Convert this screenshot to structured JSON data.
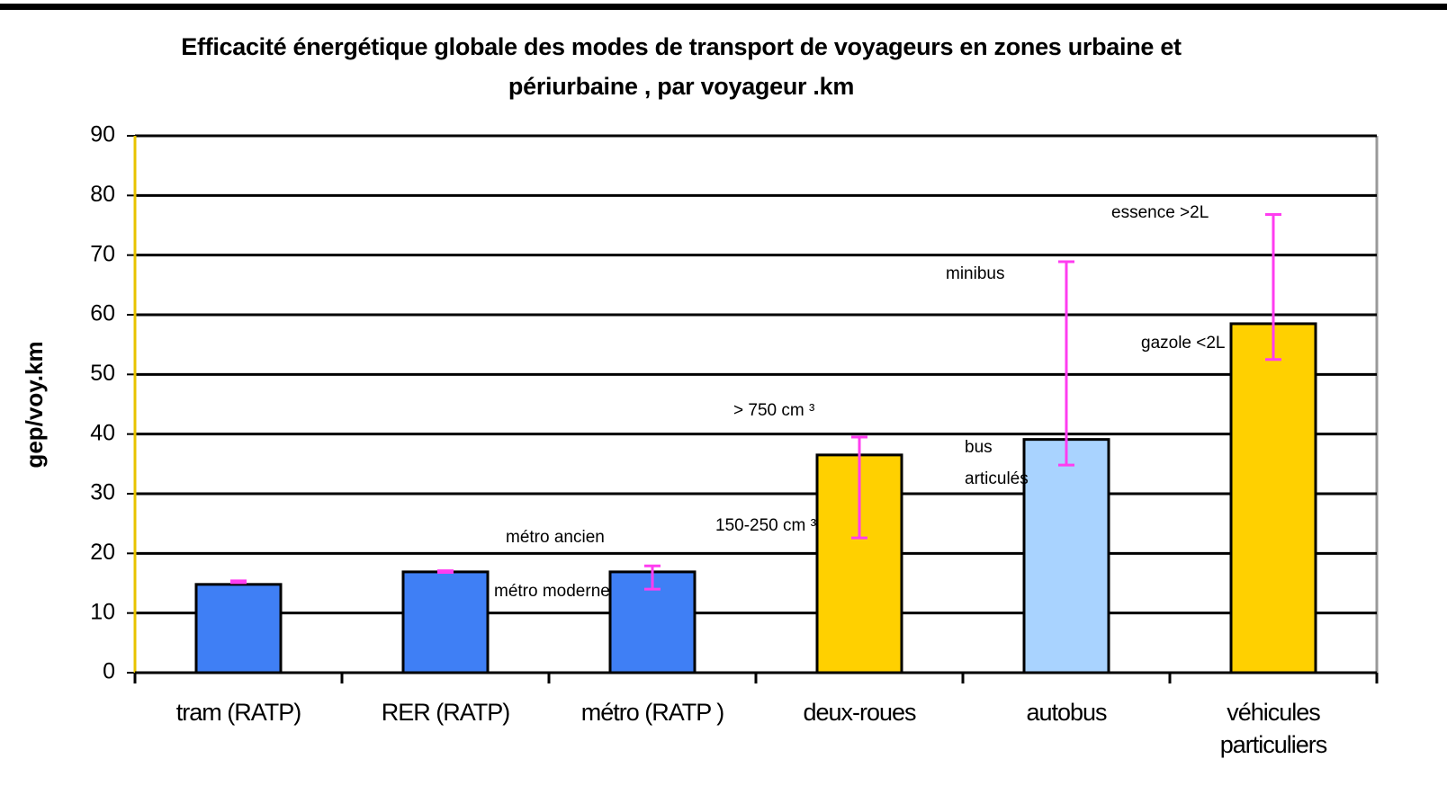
{
  "chart_data": {
    "type": "bar",
    "title": "Efficacité énergétique globale des modes de transport de voyageurs en zones urbaine et périurbaine  , par voyageur .km",
    "ylabel": "gep/voy.km",
    "categories": [
      "tram (RATP)",
      "RER (RATP)",
      "métro  (RATP )",
      "deux-roues",
      "autobus",
      "véhicules particuliers"
    ],
    "values": [
      14.8,
      16.9,
      16.9,
      36.5,
      39.1,
      58.5
    ],
    "colors": [
      "#3f7ff5",
      "#3f7ff5",
      "#3f7ff5",
      "#ffd000",
      "#a9d3ff",
      "#ffd000"
    ],
    "low": [
      15.1,
      16.8,
      14.0,
      22.6,
      34.8,
      52.5
    ],
    "high": [
      15.4,
      17.1,
      17.9,
      39.5,
      68.9,
      76.8
    ],
    "error_color": "#ff3df0",
    "annotations": [
      "métro ancien",
      "métro moderne",
      "> 750 cm ³",
      "150-250 cm ³",
      "bus",
      "articulés",
      "minibus",
      "essence >2L",
      "gazole <2L"
    ],
    "ylim": [
      0,
      90
    ],
    "yticks": [
      0,
      10,
      20,
      30,
      40,
      50,
      60,
      70,
      80,
      90
    ],
    "grid": true
  }
}
